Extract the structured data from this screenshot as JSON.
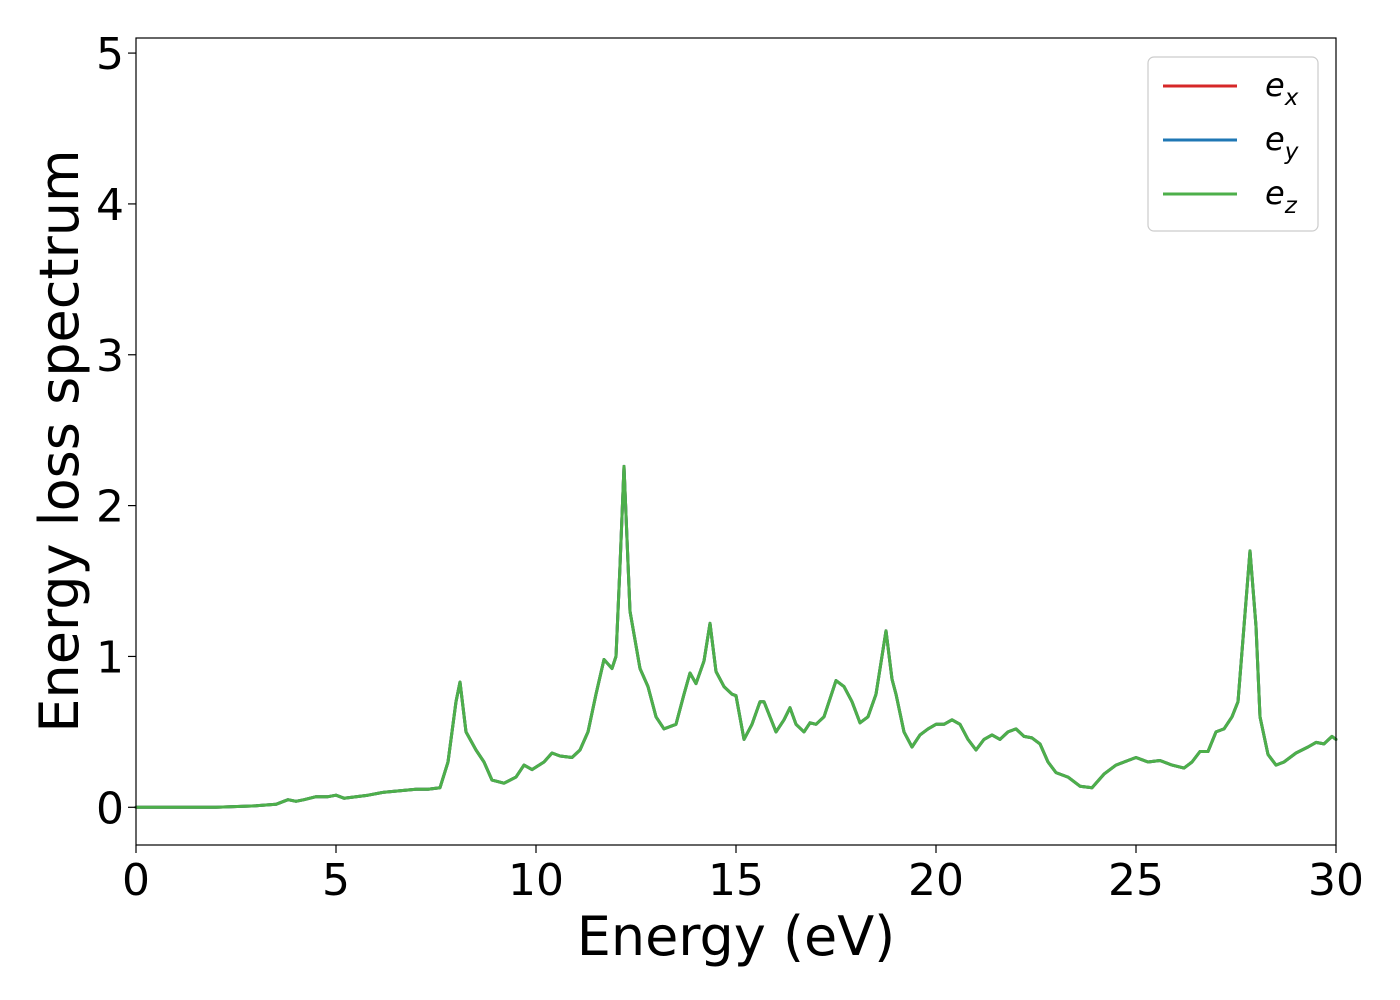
{
  "chart_data": {
    "type": "line",
    "xlabel": "Energy (eV)",
    "ylabel": "Energy loss spectrum",
    "xlim": [
      0,
      30
    ],
    "ylim": [
      -0.25,
      5.1
    ],
    "xticks": [
      0,
      5,
      10,
      15,
      20,
      25,
      30
    ],
    "yticks": [
      0,
      1,
      2,
      3,
      4,
      5
    ],
    "grid": false,
    "legend_position": "top-right",
    "series": [
      {
        "name": "e_x",
        "legend_base": "e",
        "legend_sub": "x",
        "color": "#d62728",
        "x": [
          0,
          1,
          2,
          3,
          3.5,
          3.8,
          4.0,
          4.2,
          4.5,
          4.8,
          5.0,
          5.2,
          5.5,
          5.8,
          6.2,
          6.6,
          7.0,
          7.3,
          7.6,
          7.8,
          8.0,
          8.1,
          8.25,
          8.5,
          8.7,
          8.9,
          9.2,
          9.5,
          9.7,
          9.9,
          10.2,
          10.4,
          10.6,
          10.9,
          11.1,
          11.3,
          11.5,
          11.7,
          11.9,
          12.0,
          12.1,
          12.2,
          12.35,
          12.6,
          12.8,
          13.0,
          13.2,
          13.5,
          13.7,
          13.85,
          14.0,
          14.2,
          14.35,
          14.5,
          14.7,
          14.9,
          15.0,
          15.2,
          15.4,
          15.6,
          15.7,
          15.85,
          16.0,
          16.2,
          16.35,
          16.5,
          16.7,
          16.85,
          17.0,
          17.2,
          17.5,
          17.7,
          17.9,
          18.1,
          18.3,
          18.5,
          18.75,
          18.9,
          19.0,
          19.2,
          19.4,
          19.6,
          19.8,
          20.0,
          20.2,
          20.4,
          20.6,
          20.8,
          21.0,
          21.2,
          21.4,
          21.6,
          21.8,
          22.0,
          22.2,
          22.4,
          22.6,
          22.8,
          23.0,
          23.3,
          23.6,
          23.9,
          24.2,
          24.5,
          24.8,
          25.0,
          25.3,
          25.6,
          25.9,
          26.2,
          26.4,
          26.6,
          26.8,
          27.0,
          27.2,
          27.4,
          27.55,
          27.7,
          27.85,
          28.0,
          28.1,
          28.3,
          28.5,
          28.7,
          29.0,
          29.3,
          29.5,
          29.7,
          29.9,
          30.0
        ],
        "values": [
          0,
          0,
          0,
          0.01,
          0.02,
          0.05,
          0.04,
          0.05,
          0.07,
          0.07,
          0.08,
          0.06,
          0.07,
          0.08,
          0.1,
          0.11,
          0.12,
          0.12,
          0.13,
          0.3,
          0.7,
          0.83,
          0.5,
          0.38,
          0.3,
          0.18,
          0.16,
          0.2,
          0.28,
          0.25,
          0.3,
          0.36,
          0.34,
          0.33,
          0.38,
          0.5,
          0.75,
          0.98,
          0.92,
          1.0,
          1.6,
          2.26,
          1.3,
          0.92,
          0.8,
          0.6,
          0.52,
          0.55,
          0.75,
          0.89,
          0.82,
          0.97,
          1.22,
          0.9,
          0.8,
          0.75,
          0.74,
          0.45,
          0.55,
          0.7,
          0.7,
          0.6,
          0.5,
          0.58,
          0.66,
          0.55,
          0.5,
          0.56,
          0.55,
          0.6,
          0.84,
          0.8,
          0.7,
          0.56,
          0.6,
          0.75,
          1.17,
          0.85,
          0.75,
          0.5,
          0.4,
          0.48,
          0.52,
          0.55,
          0.55,
          0.58,
          0.55,
          0.45,
          0.38,
          0.45,
          0.48,
          0.45,
          0.5,
          0.52,
          0.47,
          0.46,
          0.42,
          0.3,
          0.23,
          0.2,
          0.14,
          0.13,
          0.22,
          0.28,
          0.31,
          0.33,
          0.3,
          0.31,
          0.28,
          0.26,
          0.3,
          0.37,
          0.37,
          0.5,
          0.52,
          0.6,
          0.7,
          1.2,
          1.7,
          1.2,
          0.6,
          0.35,
          0.28,
          0.3,
          0.36,
          0.4,
          0.43,
          0.42,
          0.47,
          0.45
        ]
      },
      {
        "name": "e_y",
        "legend_base": "e",
        "legend_sub": "y",
        "color": "#1f77b4",
        "x": [
          0,
          1,
          2,
          3,
          3.5,
          3.8,
          4.0,
          4.2,
          4.5,
          4.8,
          5.0,
          5.2,
          5.5,
          5.8,
          6.2,
          6.6,
          7.0,
          7.3,
          7.6,
          7.8,
          8.0,
          8.1,
          8.25,
          8.5,
          8.7,
          8.9,
          9.2,
          9.5,
          9.7,
          9.9,
          10.2,
          10.4,
          10.6,
          10.9,
          11.1,
          11.3,
          11.5,
          11.7,
          11.9,
          12.0,
          12.1,
          12.2,
          12.35,
          12.6,
          12.8,
          13.0,
          13.2,
          13.5,
          13.7,
          13.85,
          14.0,
          14.2,
          14.35,
          14.5,
          14.7,
          14.9,
          15.0,
          15.2,
          15.4,
          15.6,
          15.7,
          15.85,
          16.0,
          16.2,
          16.35,
          16.5,
          16.7,
          16.85,
          17.0,
          17.2,
          17.5,
          17.7,
          17.9,
          18.1,
          18.3,
          18.5,
          18.75,
          18.9,
          19.0,
          19.2,
          19.4,
          19.6,
          19.8,
          20.0,
          20.2,
          20.4,
          20.6,
          20.8,
          21.0,
          21.2,
          21.4,
          21.6,
          21.8,
          22.0,
          22.2,
          22.4,
          22.6,
          22.8,
          23.0,
          23.3,
          23.6,
          23.9,
          24.2,
          24.5,
          24.8,
          25.0,
          25.3,
          25.6,
          25.9,
          26.2,
          26.4,
          26.6,
          26.8,
          27.0,
          27.2,
          27.4,
          27.55,
          27.7,
          27.85,
          28.0,
          28.1,
          28.3,
          28.5,
          28.7,
          29.0,
          29.3,
          29.5,
          29.7,
          29.9,
          30.0
        ],
        "values": [
          0,
          0,
          0,
          0.01,
          0.02,
          0.05,
          0.04,
          0.05,
          0.07,
          0.07,
          0.08,
          0.06,
          0.07,
          0.08,
          0.1,
          0.11,
          0.12,
          0.12,
          0.13,
          0.3,
          0.7,
          0.83,
          0.5,
          0.38,
          0.3,
          0.18,
          0.16,
          0.2,
          0.28,
          0.25,
          0.3,
          0.36,
          0.34,
          0.33,
          0.38,
          0.5,
          0.75,
          0.98,
          0.92,
          1.0,
          1.6,
          2.26,
          1.3,
          0.92,
          0.8,
          0.6,
          0.52,
          0.55,
          0.75,
          0.89,
          0.82,
          0.97,
          1.22,
          0.9,
          0.8,
          0.75,
          0.74,
          0.45,
          0.55,
          0.7,
          0.7,
          0.6,
          0.5,
          0.58,
          0.66,
          0.55,
          0.5,
          0.56,
          0.55,
          0.6,
          0.84,
          0.8,
          0.7,
          0.56,
          0.6,
          0.75,
          1.17,
          0.85,
          0.75,
          0.5,
          0.4,
          0.48,
          0.52,
          0.55,
          0.55,
          0.58,
          0.55,
          0.45,
          0.38,
          0.45,
          0.48,
          0.45,
          0.5,
          0.52,
          0.47,
          0.46,
          0.42,
          0.3,
          0.23,
          0.2,
          0.14,
          0.13,
          0.22,
          0.28,
          0.31,
          0.33,
          0.3,
          0.31,
          0.28,
          0.26,
          0.3,
          0.37,
          0.37,
          0.5,
          0.52,
          0.6,
          0.7,
          1.2,
          1.7,
          1.2,
          0.6,
          0.35,
          0.28,
          0.3,
          0.36,
          0.4,
          0.43,
          0.42,
          0.47,
          0.45
        ]
      },
      {
        "name": "e_z",
        "legend_base": "e",
        "legend_sub": "z",
        "color": "#4daf4a",
        "x": [
          0,
          1,
          2,
          3,
          3.5,
          3.8,
          4.0,
          4.2,
          4.5,
          4.8,
          5.0,
          5.2,
          5.5,
          5.8,
          6.2,
          6.6,
          7.0,
          7.3,
          7.6,
          7.8,
          8.0,
          8.1,
          8.25,
          8.5,
          8.7,
          8.9,
          9.2,
          9.5,
          9.7,
          9.9,
          10.2,
          10.4,
          10.6,
          10.9,
          11.1,
          11.3,
          11.5,
          11.7,
          11.9,
          12.0,
          12.1,
          12.2,
          12.35,
          12.6,
          12.8,
          13.0,
          13.2,
          13.5,
          13.7,
          13.85,
          14.0,
          14.2,
          14.35,
          14.5,
          14.7,
          14.9,
          15.0,
          15.2,
          15.4,
          15.6,
          15.7,
          15.85,
          16.0,
          16.2,
          16.35,
          16.5,
          16.7,
          16.85,
          17.0,
          17.2,
          17.5,
          17.7,
          17.9,
          18.1,
          18.3,
          18.5,
          18.75,
          18.9,
          19.0,
          19.2,
          19.4,
          19.6,
          19.8,
          20.0,
          20.2,
          20.4,
          20.6,
          20.8,
          21.0,
          21.2,
          21.4,
          21.6,
          21.8,
          22.0,
          22.2,
          22.4,
          22.6,
          22.8,
          23.0,
          23.3,
          23.6,
          23.9,
          24.2,
          24.5,
          24.8,
          25.0,
          25.3,
          25.6,
          25.9,
          26.2,
          26.4,
          26.6,
          26.8,
          27.0,
          27.2,
          27.4,
          27.55,
          27.7,
          27.85,
          28.0,
          28.1,
          28.3,
          28.5,
          28.7,
          29.0,
          29.3,
          29.5,
          29.7,
          29.9,
          30.0
        ],
        "values": [
          0,
          0,
          0,
          0.01,
          0.02,
          0.05,
          0.04,
          0.05,
          0.07,
          0.07,
          0.08,
          0.06,
          0.07,
          0.08,
          0.1,
          0.11,
          0.12,
          0.12,
          0.13,
          0.3,
          0.7,
          0.83,
          0.5,
          0.38,
          0.3,
          0.18,
          0.16,
          0.2,
          0.28,
          0.25,
          0.3,
          0.36,
          0.34,
          0.33,
          0.38,
          0.5,
          0.75,
          0.98,
          0.92,
          1.0,
          1.6,
          2.26,
          1.3,
          0.92,
          0.8,
          0.6,
          0.52,
          0.55,
          0.75,
          0.89,
          0.82,
          0.97,
          1.22,
          0.9,
          0.8,
          0.75,
          0.74,
          0.45,
          0.55,
          0.7,
          0.7,
          0.6,
          0.5,
          0.58,
          0.66,
          0.55,
          0.5,
          0.56,
          0.55,
          0.6,
          0.84,
          0.8,
          0.7,
          0.56,
          0.6,
          0.75,
          1.17,
          0.85,
          0.75,
          0.5,
          0.4,
          0.48,
          0.52,
          0.55,
          0.55,
          0.58,
          0.55,
          0.45,
          0.38,
          0.45,
          0.48,
          0.45,
          0.5,
          0.52,
          0.47,
          0.46,
          0.42,
          0.3,
          0.23,
          0.2,
          0.14,
          0.13,
          0.22,
          0.28,
          0.31,
          0.33,
          0.3,
          0.31,
          0.28,
          0.26,
          0.3,
          0.37,
          0.37,
          0.5,
          0.52,
          0.6,
          0.7,
          1.2,
          1.7,
          1.2,
          0.6,
          0.35,
          0.28,
          0.3,
          0.36,
          0.4,
          0.43,
          0.42,
          0.47,
          0.45
        ]
      }
    ]
  }
}
